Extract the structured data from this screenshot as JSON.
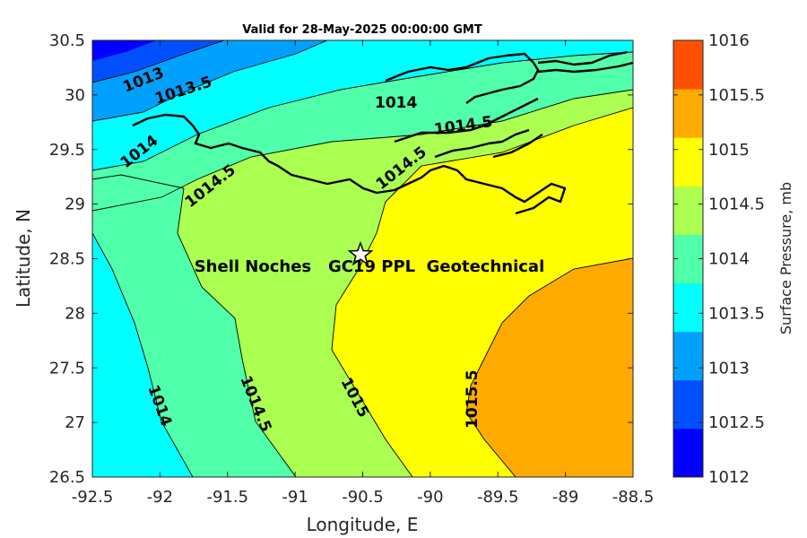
{
  "title": "Valid for 28-May-2025 00:00:00 GMT",
  "xlabel": "Longitude, E",
  "ylabel": "Latitude, N",
  "colorbar_label": "Surface Pressure, mb",
  "annotation": "Shell Noches   GC19 PPL  Geotechnical",
  "x_ticks": [
    "-92.5",
    "-92",
    "-91.5",
    "-91",
    "-90.5",
    "-90",
    "-89.5",
    "-89",
    "-88.5"
  ],
  "y_ticks": [
    "30.5",
    "30",
    "29.5",
    "29",
    "28.5",
    "28",
    "27.5",
    "27",
    "26.5"
  ],
  "cb_ticks": [
    "1016",
    "1015.5",
    "1015",
    "1014.5",
    "1014",
    "1013.5",
    "1013",
    "1012.5",
    "1012"
  ],
  "contour_labels": [
    "1013",
    "1013.5",
    "1014",
    "1014",
    "1014.5",
    "1014.5",
    "1014.5",
    "1014",
    "1014.5",
    "1015",
    "1015.5"
  ],
  "chart_data": {
    "type": "heatmap",
    "title": "Valid for 28-May-2025 00:00:00 GMT",
    "xlabel": "Longitude, E",
    "ylabel": "Latitude, N",
    "xlim": [
      -92.5,
      -88.5
    ],
    "ylim": [
      26.5,
      30.5
    ],
    "colorbar": {
      "label": "Surface Pressure, mb",
      "range": [
        1012,
        1016
      ],
      "levels": [
        1012,
        1012.5,
        1013,
        1013.5,
        1014,
        1014.5,
        1015,
        1015.5,
        1016
      ],
      "colors": [
        "#0000ff",
        "#0050ff",
        "#00a0ff",
        "#00ffff",
        "#50ffaa",
        "#aaff50",
        "#ffff00",
        "#ffaa00",
        "#ff5000"
      ]
    },
    "contour_levels": [
      1013,
      1013.5,
      1014,
      1014.5,
      1015,
      1015.5
    ],
    "marker": {
      "symbol": "star",
      "lon": -90.52,
      "lat": 28.55
    },
    "annotation": "Shell Noches   GC19 PPL  Geotechnical"
  }
}
